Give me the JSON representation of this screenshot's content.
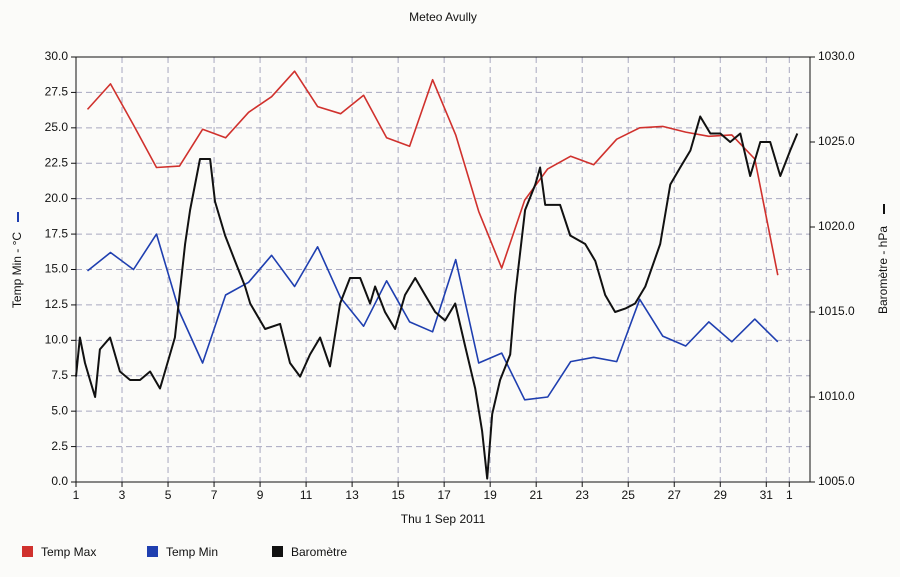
{
  "chart_data": {
    "type": "line",
    "title": "Meteo  Avully",
    "xlabel": "Thu 1 Sep 2011",
    "ylabel": "Temp Min - °C",
    "y2label": "Baromètre - hPa",
    "xlim": [
      1,
      32.9
    ],
    "xticks": [
      1,
      3,
      5,
      7,
      9,
      11,
      13,
      15,
      17,
      19,
      21,
      23,
      25,
      27,
      29,
      31,
      {
        "value": 32,
        "label": "1"
      }
    ],
    "ylim": [
      0,
      30
    ],
    "yticks": [
      {
        "value": 0,
        "label": "0.0"
      },
      {
        "value": 2.5,
        "label": "2.5"
      },
      {
        "value": 5,
        "label": "5.0"
      },
      {
        "value": 7.5,
        "label": "7.5"
      },
      {
        "value": 10,
        "label": "10.0"
      },
      {
        "value": 12.5,
        "label": "12.5"
      },
      {
        "value": 15,
        "label": "15.0"
      },
      {
        "value": 17.5,
        "label": "17.5"
      },
      {
        "value": 20,
        "label": "20.0"
      },
      {
        "value": 22.5,
        "label": "22.5"
      },
      {
        "value": 25,
        "label": "25.0"
      },
      {
        "value": 27.5,
        "label": "27.5"
      },
      {
        "value": 30,
        "label": "30.0"
      }
    ],
    "y2lim": [
      1005,
      1030
    ],
    "y2ticks": [
      {
        "value": 1005,
        "label": "1005.0"
      },
      {
        "value": 1010,
        "label": "1010.0"
      },
      {
        "value": 1015,
        "label": "1015.0"
      },
      {
        "value": 1020,
        "label": "1020.0"
      },
      {
        "value": 1025,
        "label": "1025.0"
      },
      {
        "value": 1030,
        "label": "1030.0"
      }
    ],
    "grid": true,
    "legend": "bottom",
    "series": [
      {
        "name": "Temp Max",
        "color": "#d0312d",
        "x": [
          1.5,
          2.5,
          3.5,
          4.5,
          5.5,
          6.5,
          7.5,
          8.5,
          9.5,
          10.5,
          11.5,
          12.5,
          13.5,
          14.5,
          15.5,
          16.5,
          17.5,
          18.5,
          19.5,
          20.5,
          21.5,
          22.5,
          23.5,
          24.5,
          25.5,
          26.5,
          27.5,
          28.5,
          29.5,
          30.5,
          31.5
        ],
        "values": [
          26.3,
          28.1,
          25.2,
          22.2,
          22.3,
          24.9,
          24.3,
          26.1,
          27.2,
          29.0,
          26.5,
          26.0,
          27.3,
          24.3,
          23.7,
          28.4,
          24.5,
          19.1,
          15.1,
          19.9,
          22.1,
          23.0,
          22.4,
          24.2,
          25.0,
          25.1,
          24.7,
          24.4,
          24.5,
          22.8,
          14.6
        ]
      },
      {
        "name": "Temp Min",
        "color": "#1f3fb0",
        "x": [
          1.5,
          2.5,
          3.5,
          4.5,
          5.5,
          6.5,
          7.5,
          8.5,
          9.5,
          10.5,
          11.5,
          12.5,
          13.5,
          14.5,
          15.5,
          16.5,
          17.5,
          18.5,
          19.5,
          20.5,
          21.5,
          22.5,
          23.5,
          24.5,
          25.5,
          26.5,
          27.5,
          28.5,
          29.5,
          30.5,
          31.5
        ],
        "values": [
          14.9,
          16.2,
          15.0,
          17.5,
          12.0,
          8.4,
          13.2,
          14.1,
          16.0,
          13.8,
          16.6,
          13.0,
          11.0,
          14.2,
          11.3,
          10.6,
          15.7,
          8.4,
          9.1,
          5.8,
          6.0,
          8.5,
          8.8,
          8.5,
          12.9,
          10.3,
          9.6,
          11.3,
          9.9,
          11.5,
          9.9
        ]
      },
      {
        "name": "Baromètre",
        "color": "#111111",
        "axis": "y2",
        "x": [
          1,
          1.17,
          1.39,
          1.61,
          1.83,
          2.04,
          2.48,
          2.91,
          3.35,
          3.78,
          4.22,
          4.65,
          4.87,
          5.3,
          5.74,
          5.96,
          6.39,
          6.83,
          7.04,
          7.48,
          7.91,
          8.35,
          8.57,
          9.22,
          9.87,
          10.3,
          10.74,
          11.17,
          11.61,
          12.04,
          12.48,
          12.91,
          13.35,
          13.78,
          14.0,
          14.43,
          14.87,
          15.3,
          15.74,
          16.17,
          16.61,
          17.04,
          17.48,
          17.91,
          18.35,
          18.65,
          18.87,
          19.09,
          19.43,
          19.87,
          20.09,
          20.52,
          20.96,
          21.17,
          21.39,
          22.04,
          22.48,
          23.13,
          23.57,
          24.0,
          24.43,
          24.87,
          25.3,
          25.74,
          26.39,
          26.83,
          27.26,
          27.7,
          28.13,
          28.57,
          29.0,
          29.43,
          29.87,
          30.3,
          30.74,
          31.17,
          31.61,
          32.04,
          32.35
        ],
        "values": [
          1011.2,
          1013.5,
          1012,
          1011,
          1010,
          1012.8,
          1013.5,
          1011.5,
          1011,
          1011,
          1011.5,
          1010.5,
          1011.5,
          1013.5,
          1019,
          1021,
          1024,
          1024,
          1021.5,
          1019.5,
          1018,
          1016.5,
          1015.5,
          1014,
          1014.3,
          1012,
          1011.2,
          1012.5,
          1013.5,
          1011.8,
          1015.5,
          1017,
          1017,
          1015.5,
          1016.5,
          1015,
          1014,
          1016,
          1017,
          1016,
          1015,
          1014.5,
          1015.5,
          1013,
          1010.5,
          1008,
          1005.2,
          1009,
          1011,
          1012.5,
          1016,
          1021,
          1022.5,
          1023.5,
          1021.3,
          1021.3,
          1019.5,
          1019,
          1018,
          1016,
          1015,
          1015.2,
          1015.5,
          1016.5,
          1019,
          1022.5,
          1023.5,
          1024.5,
          1026.5,
          1025.5,
          1025.5,
          1025,
          1025.5,
          1023,
          1025,
          1025,
          1023,
          1024.5,
          1025.5
        ]
      }
    ]
  }
}
